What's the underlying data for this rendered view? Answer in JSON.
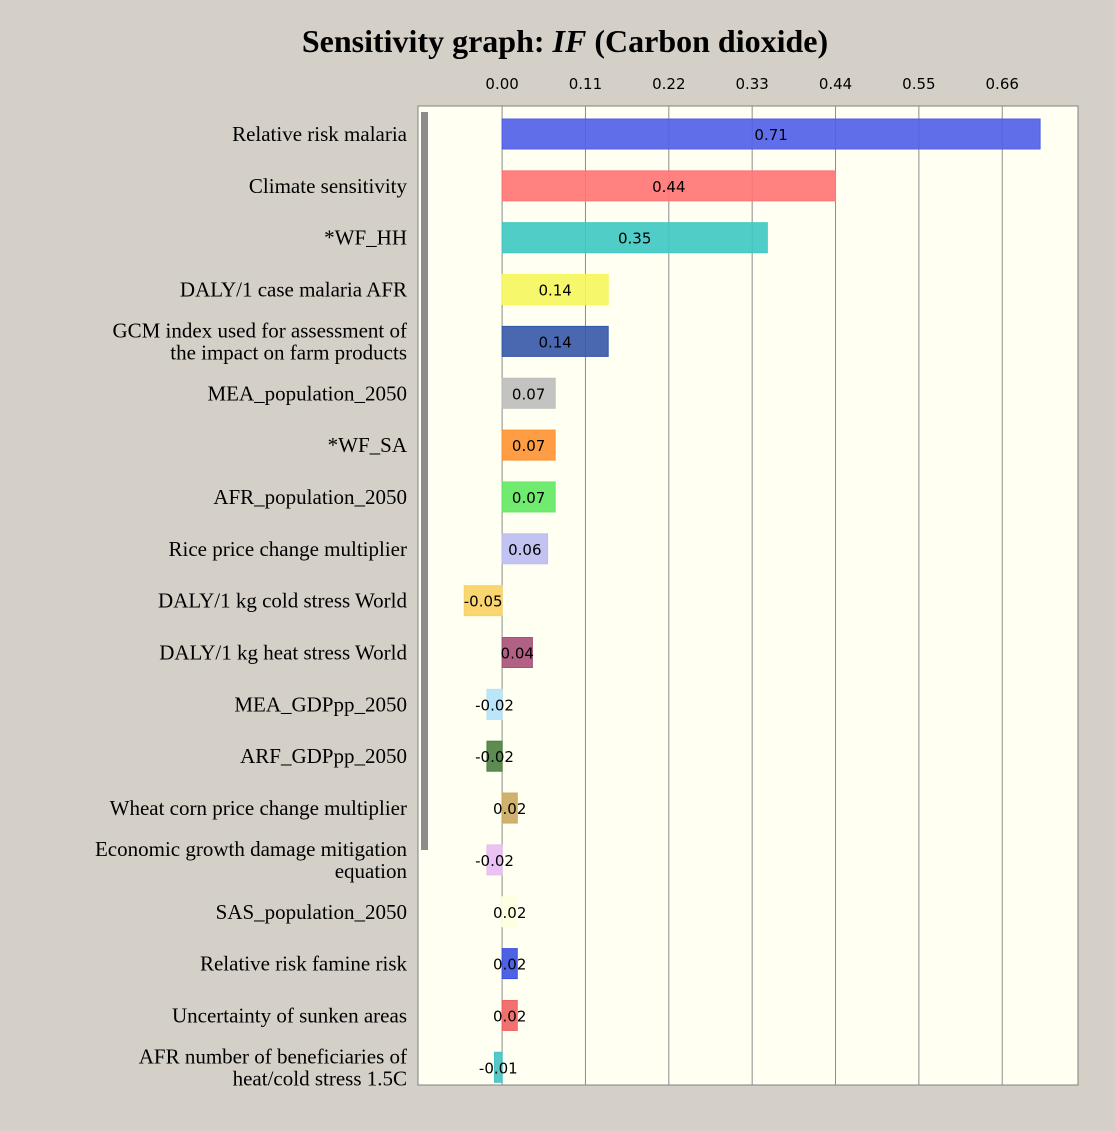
{
  "chart_data": {
    "type": "bar",
    "orientation": "horizontal",
    "title_parts": [
      "Sensitivity graph: ",
      "IF",
      " (Carbon dioxide)"
    ],
    "categories": [
      "Relative risk malaria",
      "Climate sensitivity",
      "*WF_HH",
      "DALY/1 case malaria AFR",
      "GCM index used for assessment of\nthe impact on farm products",
      "MEA_population_2050",
      "*WF_SA",
      "AFR_population_2050",
      "Rice price change multiplier",
      "DALY/1 kg cold stress World",
      "DALY/1 kg heat stress World",
      "MEA_GDPpp_2050",
      "ARF_GDPpp_2050",
      "Wheat corn price change multiplier",
      "Economic growth damage mitigation\nequation",
      "SAS_population_2050",
      "Relative risk famine risk",
      "Uncertainty of sunken areas",
      "AFR number of beneficiaries of\nheat/cold stress 1.5C"
    ],
    "values": [
      0.71,
      0.44,
      0.35,
      0.14,
      0.14,
      0.07,
      0.07,
      0.07,
      0.06,
      -0.05,
      0.04,
      -0.02,
      -0.02,
      0.02,
      -0.02,
      0.02,
      0.02,
      0.02,
      -0.01
    ],
    "colors": [
      "#4f5fe8",
      "#ff7474",
      "#3ec8c2",
      "#f6f65c",
      "#3558a8",
      "#bcbcbc",
      "#ff9232",
      "#62e862",
      "#bcbcf2",
      "#f8d262",
      "#a85078",
      "#b4e2f8",
      "#4a8040",
      "#caa862",
      "#e8bcf2",
      "#ffffe0",
      "#3a52e2",
      "#f06262",
      "#42c2c2"
    ],
    "xlim": [
      -0.111,
      0.76
    ],
    "xticks": [
      {
        "value": 0,
        "label": "0.00"
      },
      0.11,
      0.22,
      0.33,
      0.44,
      0.55,
      0.66
    ],
    "grid": true
  }
}
